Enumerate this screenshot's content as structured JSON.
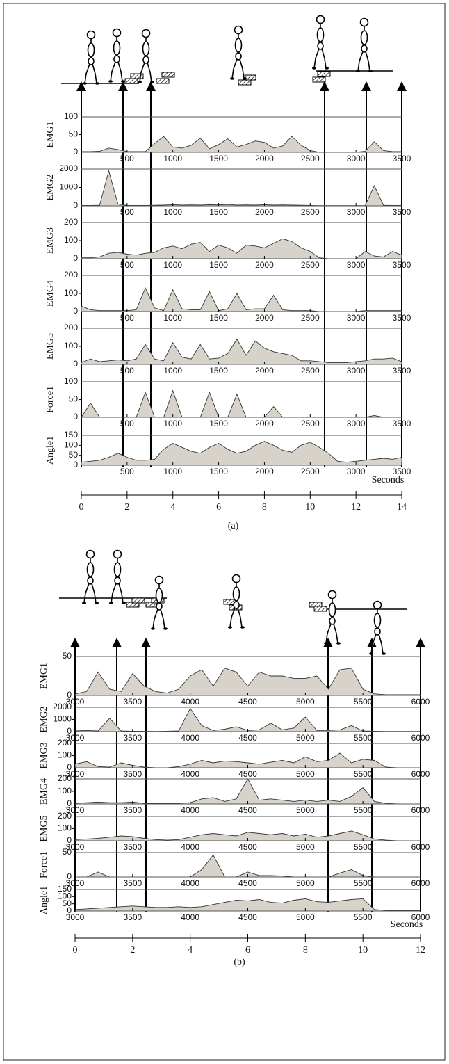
{
  "chart_data": [
    {
      "type": "area",
      "ylabel": "EMG1",
      "color": "#d8d3ca",
      "x": [
        0,
        100,
        200,
        300,
        400,
        500,
        600,
        700,
        800,
        900,
        1000,
        1100,
        1200,
        1300,
        1400,
        1500,
        1600,
        1700,
        1800,
        1900,
        2000,
        2100,
        2200,
        2300,
        2400,
        2500,
        2600,
        2700,
        2800,
        2900,
        3000,
        3100,
        3200,
        3300,
        3400,
        3500
      ],
      "values": [
        2,
        2,
        3,
        12,
        8,
        2,
        2,
        2,
        25,
        45,
        15,
        12,
        20,
        40,
        10,
        22,
        38,
        15,
        22,
        32,
        28,
        12,
        18,
        45,
        20,
        5,
        0,
        0,
        0,
        0,
        0,
        3,
        30,
        5,
        2,
        2
      ],
      "xlim": [
        0,
        3500
      ],
      "xticks": [
        500,
        1000,
        1500,
        2000,
        2500,
        3000,
        3500
      ],
      "ylim": [
        0,
        100
      ],
      "yticks": [
        0,
        50,
        100
      ]
    },
    {
      "type": "area",
      "ylabel": "EMG2",
      "color": "#d8d3ca",
      "x": [
        0,
        100,
        200,
        300,
        400,
        500,
        600,
        700,
        800,
        900,
        1000,
        1100,
        1200,
        1300,
        1400,
        1500,
        1600,
        1700,
        1800,
        1900,
        2000,
        2100,
        2200,
        2300,
        2400,
        2500,
        2600,
        2700,
        2800,
        2900,
        3000,
        3100,
        3200,
        3300,
        3400,
        3500
      ],
      "values": [
        20,
        20,
        30,
        1900,
        100,
        20,
        20,
        20,
        30,
        40,
        60,
        40,
        50,
        40,
        60,
        50,
        70,
        40,
        50,
        40,
        60,
        40,
        50,
        40,
        30,
        20,
        10,
        10,
        10,
        10,
        10,
        10,
        1100,
        30,
        20,
        20
      ],
      "xlim": [
        0,
        3500
      ],
      "xticks": [
        500,
        1000,
        1500,
        2000,
        2500,
        3000,
        3500
      ],
      "ylim": [
        0,
        2000
      ],
      "yticks": [
        0,
        1000,
        2000
      ]
    },
    {
      "type": "area",
      "ylabel": "EMG3",
      "color": "#d8d3ca",
      "x": [
        0,
        100,
        200,
        300,
        400,
        500,
        600,
        700,
        800,
        900,
        1000,
        1100,
        1200,
        1300,
        1400,
        1500,
        1600,
        1700,
        1800,
        1900,
        2000,
        2100,
        2200,
        2300,
        2400,
        2500,
        2600,
        2700,
        2800,
        2900,
        3000,
        3100,
        3200,
        3300,
        3400,
        3500
      ],
      "values": [
        5,
        5,
        10,
        30,
        35,
        25,
        20,
        30,
        35,
        60,
        70,
        55,
        80,
        90,
        40,
        75,
        60,
        30,
        75,
        70,
        60,
        85,
        110,
        95,
        60,
        40,
        5,
        0,
        0,
        0,
        0,
        40,
        15,
        10,
        40,
        20
      ],
      "xlim": [
        0,
        3500
      ],
      "xticks": [
        500,
        1000,
        1500,
        2000,
        2500,
        3000,
        3500
      ],
      "ylim": [
        0,
        200
      ],
      "yticks": [
        0,
        100,
        200
      ]
    },
    {
      "type": "area",
      "ylabel": "EMG4",
      "color": "#d8d3ca",
      "x": [
        0,
        100,
        200,
        300,
        400,
        500,
        600,
        700,
        800,
        900,
        1000,
        1100,
        1200,
        1300,
        1400,
        1500,
        1600,
        1700,
        1800,
        1900,
        2000,
        2100,
        2200,
        2300,
        2400,
        2500,
        2600,
        2700,
        2800,
        2900,
        3000,
        3100,
        3200,
        3300,
        3400,
        3500
      ],
      "values": [
        30,
        10,
        5,
        5,
        5,
        5,
        10,
        130,
        20,
        5,
        120,
        15,
        10,
        10,
        110,
        5,
        15,
        100,
        10,
        15,
        15,
        90,
        10,
        5,
        5,
        5,
        0,
        0,
        0,
        0,
        0,
        5,
        5,
        5,
        5,
        5
      ],
      "xlim": [
        0,
        3500
      ],
      "xticks": [
        500,
        1000,
        1500,
        2000,
        2500,
        3000,
        3500
      ],
      "ylim": [
        0,
        200
      ],
      "yticks": [
        0,
        100,
        200
      ]
    },
    {
      "type": "area",
      "ylabel": "EMG5",
      "color": "#d8d3ca",
      "x": [
        0,
        100,
        200,
        300,
        400,
        500,
        600,
        700,
        800,
        900,
        1000,
        1100,
        1200,
        1300,
        1400,
        1500,
        1600,
        1700,
        1800,
        1900,
        2000,
        2100,
        2200,
        2300,
        2400,
        2500,
        2600,
        2700,
        2800,
        2900,
        3000,
        3100,
        3200,
        3300,
        3400,
        3500
      ],
      "values": [
        10,
        30,
        15,
        20,
        25,
        20,
        30,
        110,
        30,
        20,
        120,
        40,
        30,
        110,
        30,
        35,
        60,
        140,
        50,
        130,
        90,
        70,
        60,
        50,
        20,
        20,
        15,
        10,
        10,
        10,
        15,
        20,
        30,
        30,
        35,
        15
      ],
      "xlim": [
        0,
        3500
      ],
      "xticks": [
        500,
        1000,
        1500,
        2000,
        2500,
        3000,
        3500
      ],
      "ylim": [
        0,
        200
      ],
      "yticks": [
        0,
        100,
        200
      ]
    },
    {
      "type": "area",
      "ylabel": "Force1",
      "color": "#d8d3ca",
      "x": [
        0,
        100,
        200,
        300,
        400,
        500,
        600,
        700,
        800,
        900,
        1000,
        1100,
        1200,
        1300,
        1400,
        1500,
        1600,
        1700,
        1800,
        1900,
        2000,
        2100,
        2200,
        2300,
        2400,
        2500,
        2600,
        2700,
        2800,
        2900,
        3000,
        3100,
        3200,
        3300,
        3400,
        3500
      ],
      "values": [
        0,
        40,
        0,
        0,
        0,
        0,
        0,
        70,
        0,
        0,
        75,
        0,
        0,
        0,
        70,
        0,
        0,
        65,
        0,
        0,
        0,
        30,
        0,
        0,
        0,
        0,
        0,
        0,
        0,
        0,
        0,
        0,
        5,
        0,
        0,
        0
      ],
      "xlim": [
        0,
        3500
      ],
      "xticks": [
        500,
        1000,
        1500,
        2000,
        2500,
        3000,
        3500
      ],
      "ylim": [
        0,
        100
      ],
      "yticks": [
        0,
        50,
        100
      ]
    },
    {
      "type": "area",
      "ylabel": "Angle1",
      "color": "#d8d3ca",
      "x": [
        0,
        100,
        200,
        300,
        400,
        500,
        600,
        700,
        800,
        900,
        1000,
        1100,
        1200,
        1300,
        1400,
        1500,
        1600,
        1700,
        1800,
        1900,
        2000,
        2100,
        2200,
        2300,
        2400,
        2500,
        2600,
        2700,
        2800,
        2900,
        3000,
        3100,
        3200,
        3300,
        3400,
        3500
      ],
      "values": [
        15,
        20,
        25,
        40,
        60,
        40,
        25,
        25,
        30,
        80,
        110,
        90,
        70,
        60,
        90,
        110,
        80,
        60,
        70,
        100,
        120,
        100,
        75,
        65,
        100,
        115,
        90,
        60,
        20,
        15,
        20,
        25,
        30,
        35,
        30,
        40
      ],
      "xlim": [
        0,
        3500
      ],
      "xticks": [
        500,
        1000,
        1500,
        2000,
        2500,
        3000,
        3500
      ],
      "ylim": [
        0,
        150
      ],
      "yticks": [
        0,
        50,
        100,
        150
      ]
    },
    {
      "type": "area",
      "ylabel": "EMG1",
      "color": "#d8d3ca",
      "x": [
        3000,
        3100,
        3200,
        3300,
        3400,
        3500,
        3600,
        3700,
        3800,
        3900,
        4000,
        4100,
        4200,
        4300,
        4400,
        4500,
        4600,
        4700,
        4800,
        4900,
        5000,
        5100,
        5200,
        5300,
        5400,
        5500,
        5600,
        5700,
        5800,
        5900,
        6000
      ],
      "values": [
        2,
        5,
        30,
        8,
        5,
        28,
        12,
        5,
        3,
        8,
        25,
        33,
        12,
        35,
        30,
        12,
        30,
        25,
        25,
        22,
        22,
        25,
        8,
        33,
        35,
        8,
        2,
        1,
        1,
        1,
        1
      ],
      "xlim": [
        3000,
        6000
      ],
      "xticks": [
        3000,
        3500,
        4000,
        4500,
        5000,
        5500,
        6000
      ],
      "ylim": [
        0,
        50
      ],
      "yticks": [
        0,
        50
      ]
    },
    {
      "type": "area",
      "ylabel": "EMG2",
      "color": "#d8d3ca",
      "x": [
        3000,
        3100,
        3200,
        3300,
        3400,
        3500,
        3600,
        3700,
        3800,
        3900,
        4000,
        4100,
        4200,
        4300,
        4400,
        4500,
        4600,
        4700,
        4800,
        4900,
        5000,
        5100,
        5200,
        5300,
        5400,
        5500,
        5600,
        5700,
        5800,
        5900,
        6000
      ],
      "values": [
        50,
        100,
        50,
        1100,
        50,
        30,
        30,
        20,
        30,
        60,
        1900,
        500,
        100,
        200,
        400,
        100,
        150,
        700,
        150,
        300,
        1200,
        100,
        100,
        150,
        500,
        50,
        30,
        20,
        20,
        20,
        20
      ],
      "xlim": [
        3000,
        6000
      ],
      "xticks": [
        3000,
        3500,
        4000,
        4500,
        5000,
        5500,
        6000
      ],
      "ylim": [
        0,
        2000
      ],
      "yticks": [
        0,
        1000,
        2000
      ]
    },
    {
      "type": "area",
      "ylabel": "EMG3",
      "color": "#d8d3ca",
      "x": [
        3000,
        3100,
        3200,
        3300,
        3400,
        3500,
        3600,
        3700,
        3800,
        3900,
        4000,
        4100,
        4200,
        4300,
        4400,
        4500,
        4600,
        4700,
        4800,
        4900,
        5000,
        5100,
        5200,
        5300,
        5400,
        5500,
        5600,
        5700,
        5800,
        5900,
        6000
      ],
      "values": [
        30,
        50,
        10,
        5,
        40,
        20,
        5,
        0,
        0,
        10,
        30,
        60,
        40,
        55,
        50,
        40,
        30,
        45,
        60,
        40,
        90,
        50,
        60,
        120,
        40,
        70,
        60,
        5,
        0,
        0,
        0
      ],
      "xlim": [
        3000,
        6000
      ],
      "xticks": [
        3000,
        3500,
        4000,
        4500,
        5000,
        5500,
        6000
      ],
      "ylim": [
        0,
        200
      ],
      "yticks": [
        0,
        100,
        200
      ]
    },
    {
      "type": "area",
      "ylabel": "EMG4",
      "color": "#d8d3ca",
      "x": [
        3000,
        3100,
        3200,
        3300,
        3400,
        3500,
        3600,
        3700,
        3800,
        3900,
        4000,
        4100,
        4200,
        4300,
        4400,
        4500,
        4600,
        4700,
        4800,
        4900,
        5000,
        5100,
        5200,
        5300,
        5400,
        5500,
        5600,
        5700,
        5800,
        5900,
        6000
      ],
      "values": [
        5,
        10,
        15,
        10,
        10,
        15,
        5,
        5,
        5,
        5,
        10,
        40,
        50,
        20,
        40,
        200,
        30,
        40,
        30,
        20,
        30,
        20,
        30,
        20,
        60,
        130,
        20,
        5,
        0,
        0,
        0
      ],
      "xlim": [
        3000,
        6000
      ],
      "xticks": [
        3000,
        3500,
        4000,
        4500,
        5000,
        5500,
        6000
      ],
      "ylim": [
        0,
        200
      ],
      "yticks": [
        0,
        100,
        200
      ]
    },
    {
      "type": "area",
      "ylabel": "EMG5",
      "color": "#d8d3ca",
      "x": [
        3000,
        3100,
        3200,
        3300,
        3400,
        3500,
        3600,
        3700,
        3800,
        3900,
        4000,
        4100,
        4200,
        4300,
        4400,
        4500,
        4600,
        4700,
        4800,
        4900,
        5000,
        5100,
        5200,
        5300,
        5400,
        5500,
        5600,
        5700,
        5800,
        5900,
        6000
      ],
      "values": [
        10,
        15,
        20,
        30,
        40,
        35,
        20,
        10,
        5,
        10,
        30,
        50,
        60,
        50,
        40,
        70,
        60,
        50,
        60,
        40,
        55,
        30,
        40,
        60,
        80,
        50,
        15,
        5,
        0,
        0,
        0
      ],
      "xlim": [
        3000,
        6000
      ],
      "xticks": [
        3000,
        3500,
        4000,
        4500,
        5000,
        5500,
        6000
      ],
      "ylim": [
        0,
        200
      ],
      "yticks": [
        0,
        100,
        200
      ]
    },
    {
      "type": "area",
      "ylabel": "Force1",
      "color": "#d8d3ca",
      "x": [
        3000,
        3100,
        3200,
        3300,
        3400,
        3500,
        3600,
        3700,
        3800,
        3900,
        4000,
        4100,
        4200,
        4300,
        4400,
        4500,
        4600,
        4700,
        4800,
        4900,
        5000,
        5100,
        5200,
        5300,
        5400,
        5500,
        5600,
        5700,
        5800,
        5900,
        6000
      ],
      "values": [
        0,
        0,
        10,
        0,
        0,
        0,
        0,
        0,
        0,
        0,
        0,
        15,
        45,
        0,
        0,
        10,
        3,
        3,
        2,
        0,
        0,
        0,
        0,
        8,
        15,
        3,
        0,
        0,
        0,
        0,
        0
      ],
      "xlim": [
        3000,
        6000
      ],
      "xticks": [
        3000,
        3500,
        4000,
        4500,
        5000,
        5500,
        6000
      ],
      "ylim": [
        0,
        50
      ],
      "yticks": [
        0,
        50
      ]
    },
    {
      "type": "area",
      "ylabel": "Angle1",
      "color": "#d8d3ca",
      "x": [
        3000,
        3100,
        3200,
        3300,
        3400,
        3500,
        3600,
        3700,
        3800,
        3900,
        4000,
        4100,
        4200,
        4300,
        4400,
        4500,
        4600,
        4700,
        4800,
        4900,
        5000,
        5100,
        5200,
        5300,
        5400,
        5500,
        5600,
        5700,
        5800,
        5900,
        6000
      ],
      "values": [
        10,
        15,
        20,
        25,
        30,
        35,
        30,
        25,
        25,
        30,
        25,
        30,
        45,
        60,
        75,
        70,
        80,
        60,
        55,
        75,
        85,
        65,
        60,
        70,
        80,
        85,
        10,
        5,
        5,
        5,
        5
      ],
      "xlim": [
        3000,
        6000
      ],
      "xticks": [
        3000,
        3500,
        4000,
        4500,
        5000,
        5500,
        6000
      ],
      "ylim": [
        0,
        150
      ],
      "yticks": [
        0,
        50,
        100,
        150
      ]
    }
  ],
  "panels": [
    {
      "caption": "(a)",
      "time_axis": {
        "label": "Seconds",
        "xlim": [
          0,
          14
        ],
        "xticks": [
          0,
          2,
          4,
          6,
          8,
          10,
          12,
          14
        ]
      }
    },
    {
      "caption": "(b)",
      "time_axis": {
        "label": "Seconds",
        "xlim": [
          0,
          12
        ],
        "xticks": [
          0,
          2,
          4,
          6,
          8,
          10,
          12
        ]
      }
    }
  ]
}
